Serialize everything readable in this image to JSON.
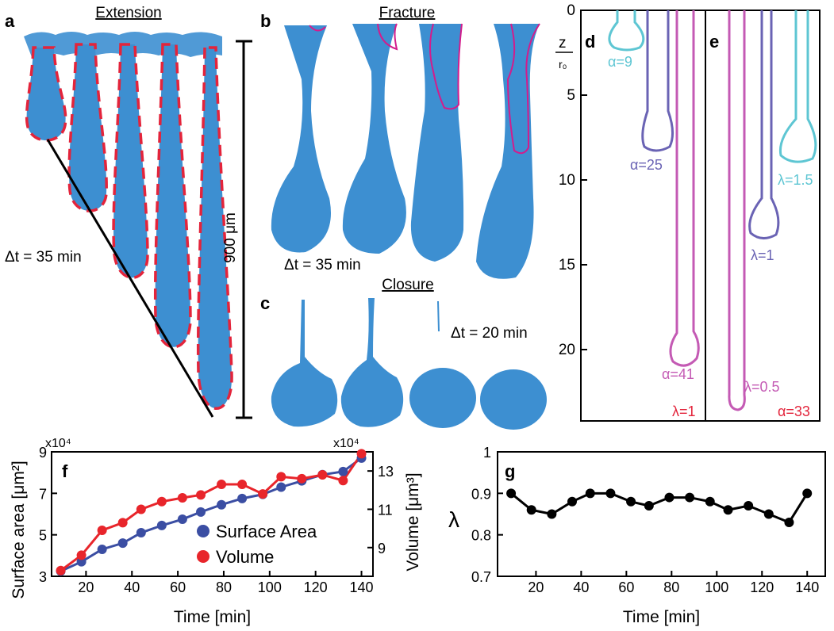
{
  "panels": {
    "a": {
      "letter": "a",
      "title": "Extension",
      "dt": "Δt = 35 min",
      "scale": "900 μm"
    },
    "b": {
      "letter": "b",
      "title": "Fracture",
      "dt": "Δt = 35 min"
    },
    "c": {
      "letter": "c",
      "title": "Closure",
      "dt": "Δt = 20 min"
    },
    "d": {
      "letter": "d",
      "axis_label_top": "z",
      "axis_label_bottom": "r₀",
      "yticks": [
        "0",
        "5",
        "10",
        "15",
        "20"
      ],
      "labels": [
        "α=9",
        "α=25",
        "α=41",
        "λ=1"
      ]
    },
    "e": {
      "letter": "e",
      "labels": [
        "λ=1.5",
        "λ=1",
        "λ=0.5",
        "α=33"
      ]
    },
    "f": {
      "letter": "f"
    },
    "g": {
      "letter": "g"
    }
  },
  "colors": {
    "cyan": "#5ec6d3",
    "purple": "#6a63b4",
    "magenta": "#c45ab4",
    "red": "#e3243b",
    "blue_series": "#3b4ea3",
    "red_series": "#e8252b",
    "tissue": "#3d8fd1"
  },
  "chart_data": [
    {
      "type": "line",
      "panel": "f",
      "title": "",
      "xlabel": "Time [min]",
      "ylabel": "Surface area [μm²]",
      "ylabel_right": "Volume [μm³]",
      "ylim": [
        3,
        9
      ],
      "ylim_right": [
        7.5,
        14
      ],
      "y_multiplier": "x10⁴",
      "y_multiplier_right": "x10⁴",
      "xticks": [
        20,
        40,
        60,
        80,
        100,
        120,
        140
      ],
      "yticks": [
        3,
        5,
        7,
        9
      ],
      "yticks_right": [
        9,
        11,
        13
      ],
      "legend": [
        "Surface Area",
        "Volume"
      ],
      "legend_position": "bottom-right",
      "x": [
        9,
        18,
        27,
        36,
        44,
        53,
        62,
        70,
        79,
        88,
        97,
        105,
        114,
        123,
        132,
        140
      ],
      "series": [
        {
          "name": "Surface Area",
          "axis": "left",
          "values": [
            3.25,
            3.7,
            4.3,
            4.6,
            5.1,
            5.45,
            5.75,
            6.1,
            6.45,
            6.75,
            6.95,
            7.3,
            7.6,
            7.9,
            8.05,
            8.7
          ]
        },
        {
          "name": "Volume",
          "axis": "right",
          "values": [
            7.8,
            8.6,
            9.9,
            10.3,
            11.0,
            11.4,
            11.6,
            11.75,
            12.3,
            12.3,
            11.8,
            12.7,
            12.6,
            12.8,
            12.5,
            13.9
          ]
        }
      ]
    },
    {
      "type": "line",
      "panel": "g",
      "title": "",
      "xlabel": "Time [min]",
      "ylabel": "λ",
      "ylim": [
        0.7,
        1.0
      ],
      "xticks": [
        20,
        40,
        60,
        80,
        100,
        120,
        140
      ],
      "yticks": [
        0.7,
        0.8,
        0.9,
        1
      ],
      "ytick_labels": [
        "0.7",
        "0.8",
        "0.9",
        "1"
      ],
      "x": [
        9,
        18,
        27,
        36,
        44,
        53,
        62,
        70,
        79,
        88,
        97,
        105,
        114,
        123,
        132,
        140
      ],
      "series": [
        {
          "name": "λ",
          "values": [
            0.9,
            0.86,
            0.85,
            0.88,
            0.9,
            0.9,
            0.88,
            0.87,
            0.89,
            0.89,
            0.88,
            0.86,
            0.87,
            0.85,
            0.83,
            0.9
          ]
        }
      ]
    }
  ]
}
